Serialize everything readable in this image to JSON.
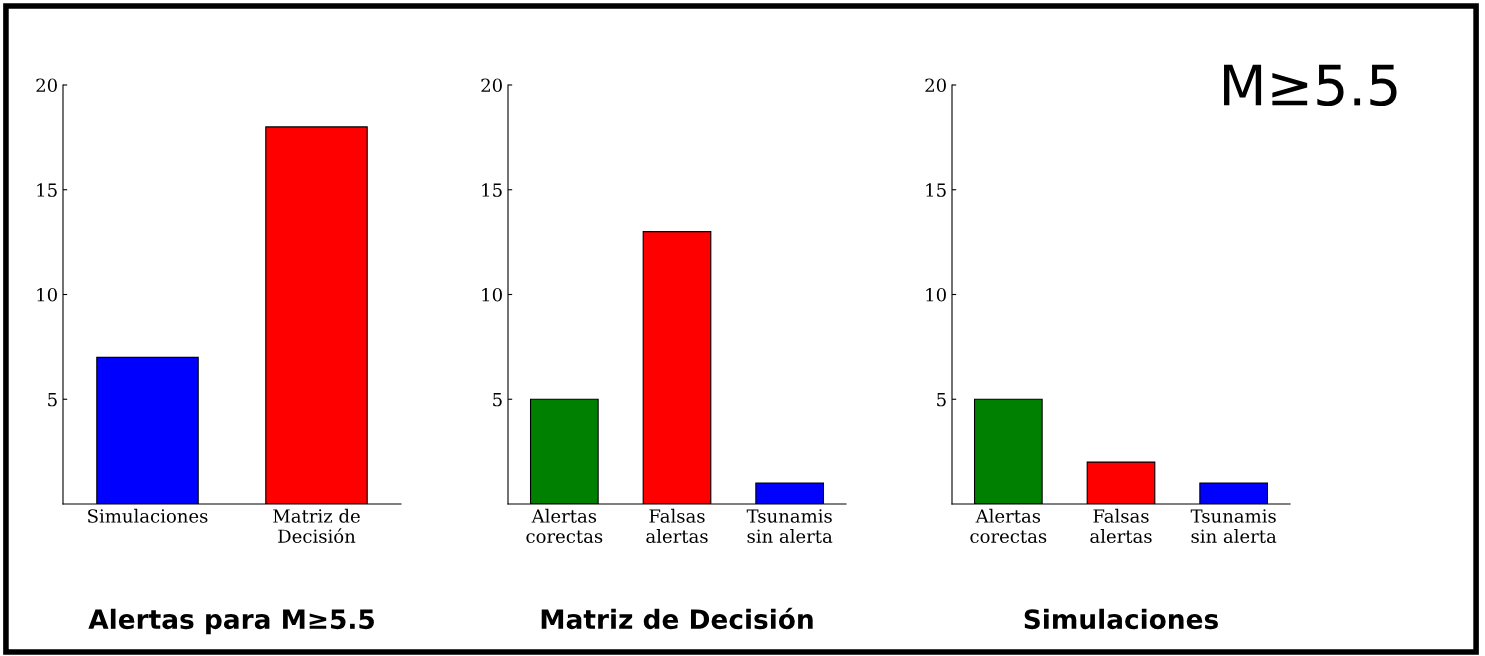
{
  "chart_data": [
    {
      "type": "bar",
      "title": "Alertas para M≥5.5",
      "categories": [
        "Simulaciones",
        "Matriz de\nDecisión"
      ],
      "colors": [
        "#0000ff",
        "#ff0000"
      ],
      "values": [
        7,
        18
      ],
      "ylim": [
        0,
        20
      ],
      "yticks": [
        5,
        10,
        15,
        20
      ],
      "grid": false
    },
    {
      "type": "bar",
      "title": "Matriz de Decisión",
      "categories": [
        "Alertas\ncorectas",
        "Falsas\nalertas",
        "Tsunamis\nsin alerta"
      ],
      "colors": [
        "#008000",
        "#ff0000",
        "#0000ff"
      ],
      "values": [
        5,
        13,
        1
      ],
      "ylim": [
        0,
        20
      ],
      "yticks": [
        5,
        10,
        15,
        20
      ],
      "grid": false
    },
    {
      "type": "bar",
      "title": "Simulaciones",
      "categories": [
        "Alertas\ncorectas",
        "Falsas\nalertas",
        "Tsunamis\nsin alerta"
      ],
      "colors": [
        "#008000",
        "#ff0000",
        "#0000ff"
      ],
      "values": [
        5,
        2,
        1
      ],
      "ylim": [
        0,
        20
      ],
      "yticks": [
        5,
        10,
        15,
        20
      ],
      "grid": false,
      "annotations": [
        "M≥5.5"
      ]
    }
  ]
}
